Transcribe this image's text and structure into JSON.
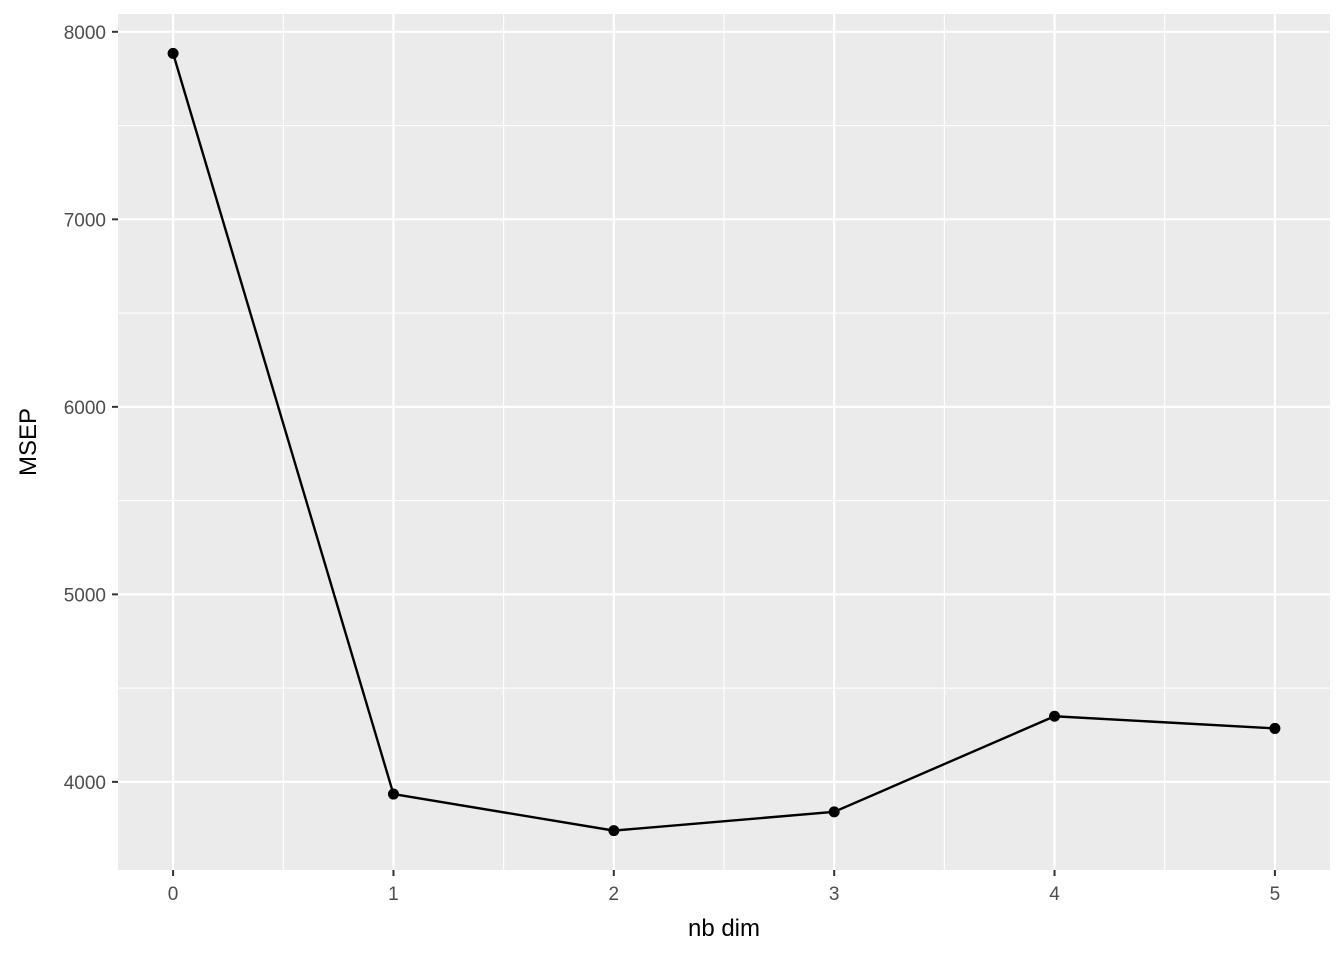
{
  "chart_data": {
    "type": "line",
    "title": "",
    "xlabel": "nb dim",
    "ylabel": "MSEP",
    "x": [
      0,
      1,
      2,
      3,
      4,
      5
    ],
    "series": [
      {
        "values": [
          7885,
          3935,
          3740,
          3840,
          4350,
          4285
        ]
      }
    ],
    "xlim": [
      -0.25,
      5.25
    ],
    "ylim": [
      3530,
      8095
    ],
    "x_ticks": [
      "0",
      "1",
      "2",
      "3",
      "4",
      "5"
    ],
    "y_ticks": [
      "4000",
      "5000",
      "6000",
      "7000",
      "8000"
    ],
    "grid": true,
    "colors": {
      "panel": "#EBEBEB",
      "grid": "#FFFFFF",
      "line": "#000000",
      "point": "#000000",
      "tick": "#333333",
      "tick_label": "#4D4D4D"
    }
  }
}
